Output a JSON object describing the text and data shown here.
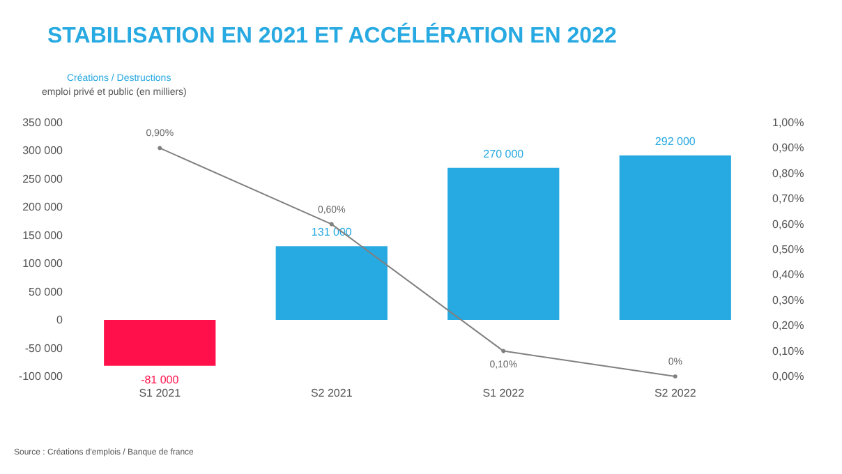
{
  "chart_data": {
    "type": "bar",
    "title": "STABILISATION EN 2021 ET ACCÉLÉRATION EN 2022",
    "subtitle": "Créations / Destructions",
    "ylabel": "emploi privé et public (en milliers)",
    "categories": [
      "S1 2021",
      "S2 2021",
      "S1 2022",
      "S2 2022"
    ],
    "series": [
      {
        "values": [
          -81000,
          131000,
          270000,
          292000
        ],
        "colors": [
          "#ff104a",
          "#27a9e1",
          "#27a9e1",
          "#27a9e1"
        ],
        "value_labels": [
          "-81 000",
          "131 000",
          "270 000",
          "292 000"
        ]
      },
      {
        "type": "line",
        "axis": "y2",
        "color": "#808080",
        "values": [
          0.9,
          0.6,
          0.1,
          0
        ],
        "value_labels": [
          "0,90%",
          "0,60%",
          "0,10%",
          "0%"
        ],
        "marker": "circle"
      }
    ],
    "ylim": [
      -100000,
      350000
    ],
    "yticks": [
      {
        "value": -100000,
        "label": "-100 000"
      },
      {
        "value": -50000,
        "label": "-50 000"
      },
      {
        "value": 0,
        "label": "0"
      },
      {
        "value": 50000,
        "label": "50 000"
      },
      {
        "value": 100000,
        "label": "100 000"
      },
      {
        "value": 150000,
        "label": "150 000"
      },
      {
        "value": 200000,
        "label": "200 000"
      },
      {
        "value": 250000,
        "label": "250 000"
      },
      {
        "value": 300000,
        "label": "300 000"
      },
      {
        "value": 350000,
        "label": "350 000"
      }
    ],
    "y2lim": [
      0,
      1
    ],
    "y2ticks": [
      {
        "value": 0,
        "label": "0,00%"
      },
      {
        "value": 0.1,
        "label": "0,10%"
      },
      {
        "value": 0.2,
        "label": "0,20%"
      },
      {
        "value": 0.3,
        "label": "0,30%"
      },
      {
        "value": 0.4,
        "label": "0,40%"
      },
      {
        "value": 0.5,
        "label": "0,50%"
      },
      {
        "value": 0.6,
        "label": "0,60%"
      },
      {
        "value": 0.7,
        "label": "0,70%"
      },
      {
        "value": 0.8,
        "label": "0,80%"
      },
      {
        "value": 0.9,
        "label": "0,90%"
      },
      {
        "value": 1,
        "label": "1,00%"
      }
    ],
    "grid": false,
    "annotations": [
      "Source : Créations d'emplois / Banque de france"
    ]
  }
}
